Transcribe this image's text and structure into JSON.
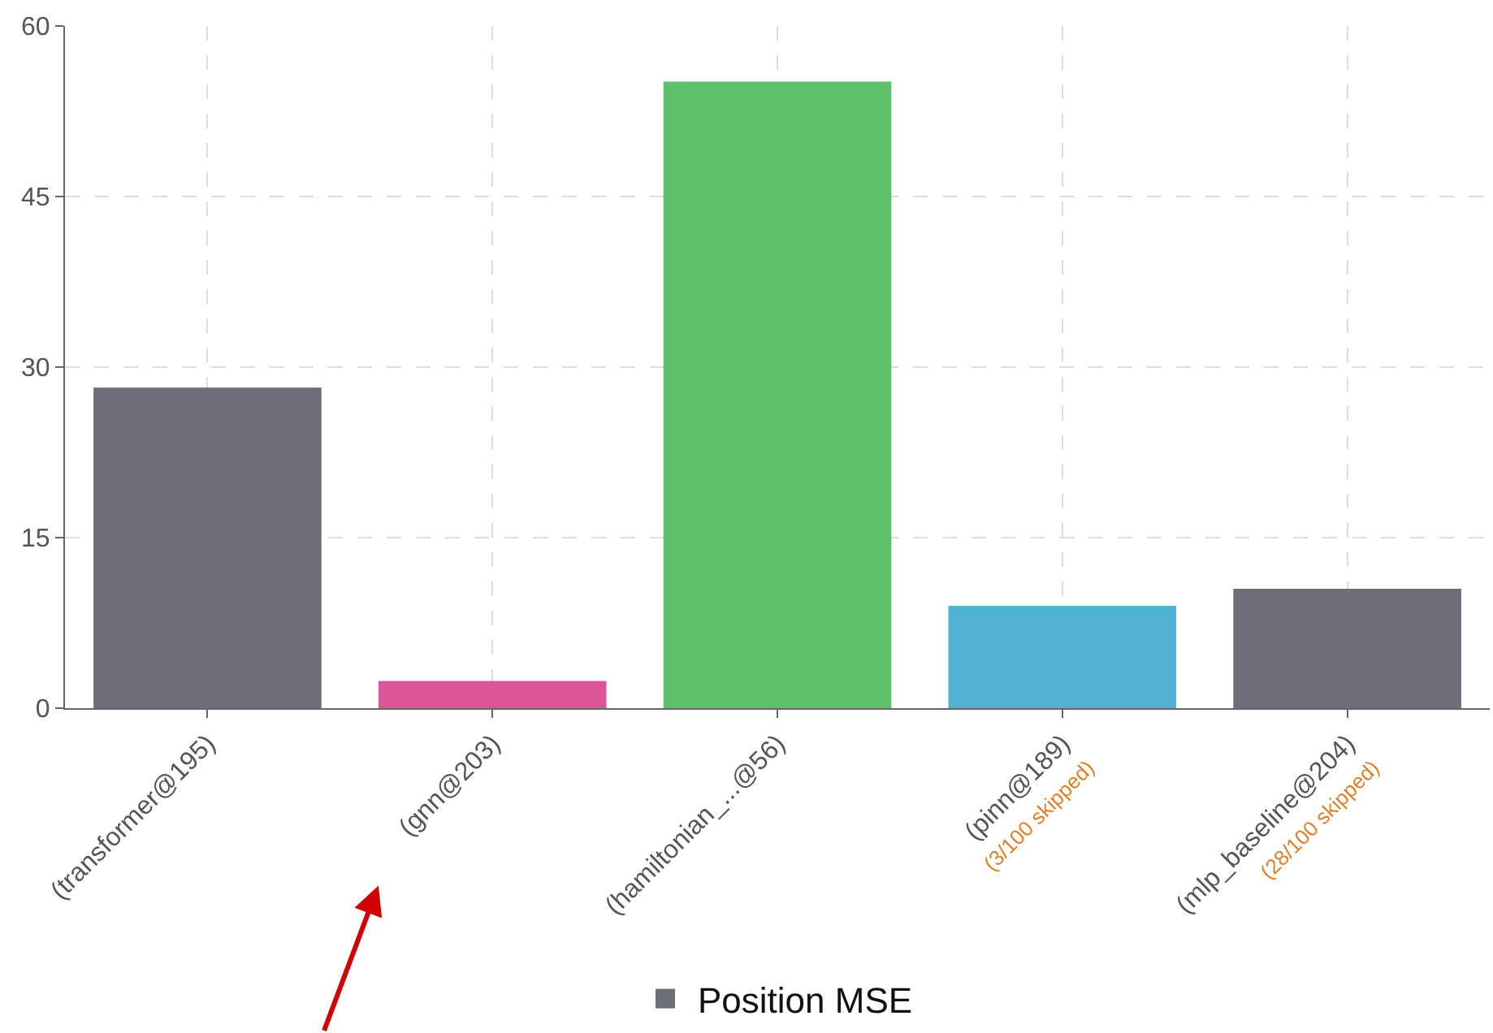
{
  "chart_data": {
    "type": "bar",
    "categories": [
      "(transformer@195)",
      "(gnn@203)",
      "(hamiltonian_...@56)",
      "(pinn@189)\n(3/100 skipped)",
      "(mlp_baseline@204)\n(28/100 skipped)"
    ],
    "series": [
      {
        "name": "Position MSE",
        "colors": [
          "#6e6e78",
          "#dc5598",
          "#5fc06a",
          "#52b2d3",
          "#6e6e78"
        ],
        "values": [
          28.2,
          2.4,
          55.1,
          9.0,
          10.5
        ]
      }
    ],
    "ylim": [
      0,
      60
    ],
    "yticks": [
      0,
      15,
      30,
      45,
      60
    ],
    "grid": true,
    "legend": "bottom"
  }
}
